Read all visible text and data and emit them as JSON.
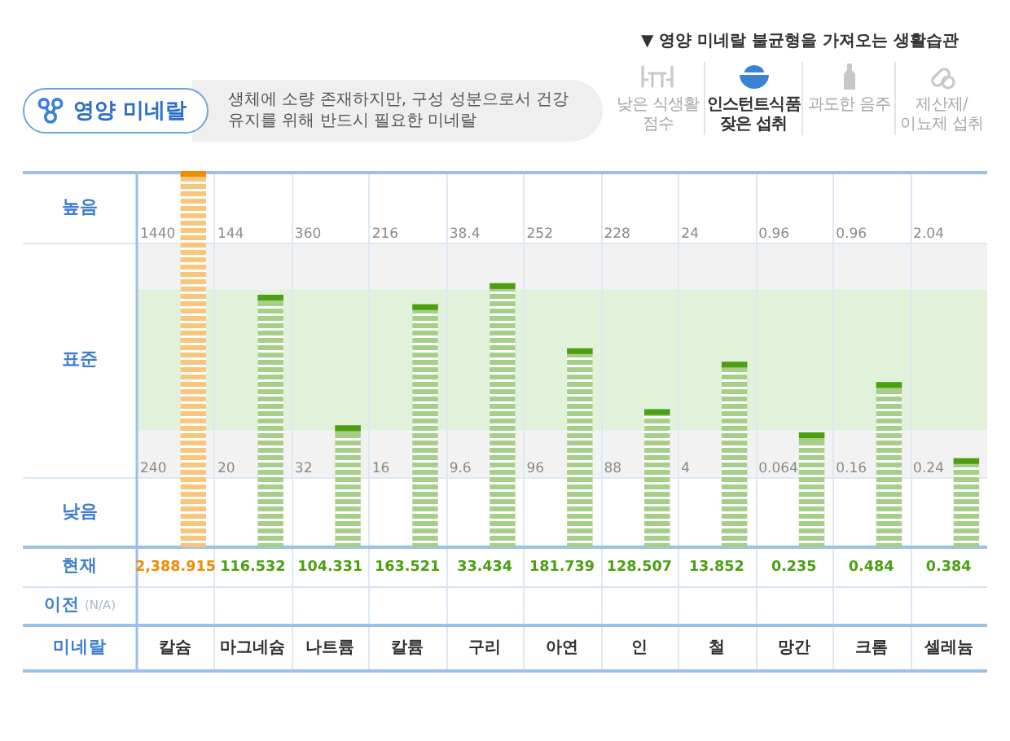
{
  "chart_data": {
    "type": "other",
    "title": "영양 미네랄",
    "subtitle": "생체에 소량 존재하지만, 구성 성분으로서 건강 유지를 위해 반드시 필요한 미네랄",
    "xlabel": "미네랄",
    "categories": [
      "칼슘",
      "마그네슘",
      "나트륨",
      "칼륨",
      "구리",
      "아연",
      "인",
      "철",
      "망간",
      "크롬",
      "셀레늄"
    ],
    "y_categories": [
      "높음",
      "표준",
      "낮음"
    ],
    "series": [
      {
        "name": "현재",
        "colors": [
          "#f8c57c",
          "#a5cf88",
          "#a5cf88",
          "#a5cf88",
          "#a5cf88",
          "#a5cf88",
          "#a5cf88",
          "#a5cf88",
          "#a5cf88",
          "#a5cf88",
          "#a5cf88"
        ],
        "values": [
          2388.915,
          116.532,
          104.331,
          163.521,
          33.434,
          181.739,
          128.507,
          13.852,
          0.235,
          0.484,
          0.384
        ],
        "value_labels": [
          "2,388.915",
          "116.532",
          "104.331",
          "163.521",
          "33.434",
          "181.739",
          "128.507",
          "13.852",
          "0.235",
          "0.484",
          "0.384"
        ]
      },
      {
        "name": "이전 (N/A)",
        "values": [
          null,
          null,
          null,
          null,
          null,
          null,
          null,
          null,
          null,
          null,
          null
        ]
      }
    ],
    "annotations": [
      "▼ 영양 미네랄 불균형을 가져오는 생활습관",
      "낮은 식생활 점수",
      "인스턴트식품 잦은 섭취",
      "과도한 음주",
      "제산제/이뇨제 섭취",
      {
        "text": "1440",
        "x": "칼슘"
      },
      {
        "text": "240",
        "x": "칼슘"
      },
      {
        "text": "144",
        "x": "마그네슘"
      },
      {
        "text": "20",
        "x": "마그네슘"
      },
      {
        "text": "360",
        "x": "나트륨"
      },
      {
        "text": "32",
        "x": "나트륨"
      },
      {
        "text": "216",
        "x": "칼륨"
      },
      {
        "text": "16",
        "x": "칼륨"
      },
      {
        "text": "38.4",
        "x": "구리"
      },
      {
        "text": "9.6",
        "x": "구리"
      },
      {
        "text": "252",
        "x": "아연"
      },
      {
        "text": "96",
        "x": "아연"
      },
      {
        "text": "228",
        "x": "인"
      },
      {
        "text": "88",
        "x": "인"
      },
      {
        "text": "24",
        "x": "철"
      },
      {
        "text": "4",
        "x": "철"
      },
      {
        "text": "0.96",
        "x": "망간"
      },
      {
        "text": "0.064",
        "x": "망간"
      },
      {
        "text": "0.96",
        "x": "크롬"
      },
      {
        "text": "0.16",
        "x": "크롬"
      },
      {
        "text": "2.04",
        "x": "셀레늄"
      },
      {
        "text": "0.24",
        "x": "셀레늄"
      }
    ]
  }
}
